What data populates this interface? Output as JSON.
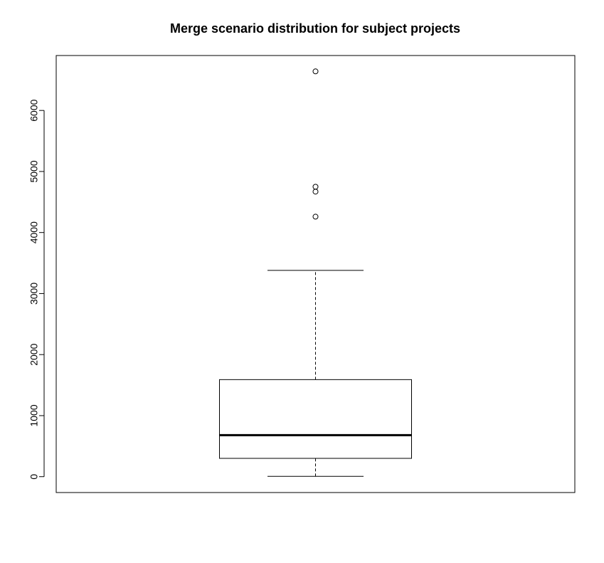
{
  "chart_data": {
    "type": "box",
    "title": "Merge scenario distribution for subject projects",
    "xlabel": "",
    "ylabel": "",
    "ylim": [
      -260,
      6900
    ],
    "yticks": [
      0,
      1000,
      2000,
      3000,
      4000,
      5000,
      6000
    ],
    "box": {
      "whisker_low": 5,
      "q1": 300,
      "median": 680,
      "q3": 1590,
      "whisker_high": 3380
    },
    "outliers": [
      4260,
      4670,
      4750,
      6640
    ],
    "grid": false,
    "legend": "none"
  }
}
